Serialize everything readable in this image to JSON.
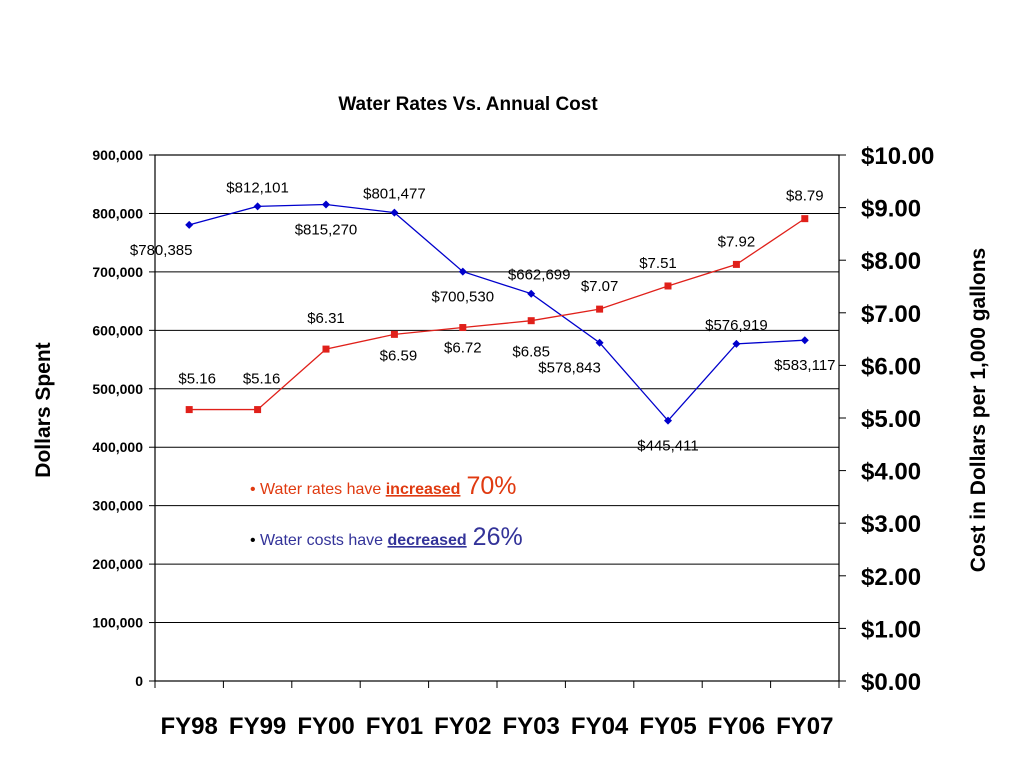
{
  "chart_data": {
    "type": "line",
    "title": "Water Rates Vs. Annual Cost",
    "categories": [
      "FY98",
      "FY99",
      "FY00",
      "FY01",
      "FY02",
      "FY03",
      "FY04",
      "FY05",
      "FY06",
      "FY07"
    ],
    "ylabel": "Dollars Spent",
    "y2label": "Cost in Dollars per 1,000 gallons",
    "ylim": [
      0,
      900000
    ],
    "y2lim": [
      0,
      10
    ],
    "yticks": [
      "0",
      "100,000",
      "200,000",
      "300,000",
      "400,000",
      "500,000",
      "600,000",
      "700,000",
      "800,000",
      "900,000"
    ],
    "y2ticks": [
      "$0.00",
      "$1.00",
      "$2.00",
      "$3.00",
      "$4.00",
      "$5.00",
      "$6.00",
      "$7.00",
      "$8.00",
      "$9.00",
      "$10.00"
    ],
    "grid": true,
    "series": [
      {
        "axis": "left",
        "color": "#0000cc",
        "marker": "diamond",
        "values": [
          780385,
          812101,
          815270,
          801477,
          700530,
          662699,
          578843,
          445411,
          576919,
          583117
        ],
        "labels": [
          "$780,385",
          "$812,101",
          "$815,270",
          "$801,477",
          "$700,530",
          "$662,699",
          "$578,843",
          "$445,411",
          "$576,919",
          "$583,117"
        ]
      },
      {
        "axis": "right",
        "color": "#e0201a",
        "marker": "square",
        "values": [
          5.16,
          5.16,
          6.31,
          6.59,
          6.72,
          6.85,
          7.07,
          7.51,
          7.92,
          8.79
        ],
        "labels": [
          "$5.16",
          "$5.16",
          "$6.31",
          "$6.59",
          "$6.72",
          "$6.85",
          "$7.07",
          "$7.51",
          "$7.92",
          "$8.79"
        ]
      }
    ],
    "annotations": [
      {
        "bullet": "•",
        "text": "Water rates have ",
        "emphasis": "increased",
        "value": "70%",
        "color": "#e03a10"
      },
      {
        "bullet": "•",
        "text": "Water costs have ",
        "emphasis": "decreased",
        "value": "26%",
        "color": "#333399"
      }
    ]
  }
}
